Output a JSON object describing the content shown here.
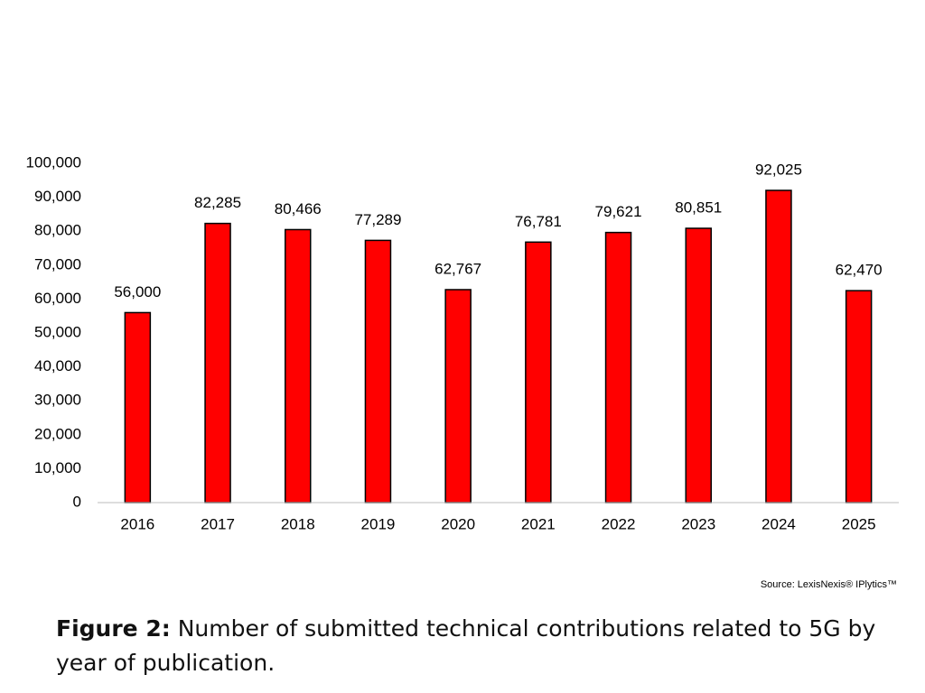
{
  "chart_data": {
    "type": "bar",
    "categories": [
      "2016",
      "2017",
      "2018",
      "2019",
      "2020",
      "2021",
      "2022",
      "2023",
      "2024",
      "2025"
    ],
    "values": [
      56000,
      82285,
      80466,
      77289,
      62767,
      76781,
      79621,
      80851,
      92025,
      62470
    ],
    "value_labels": [
      "56,000",
      "82,285",
      "80,466",
      "77,289",
      "62,767",
      "76,781",
      "79,621",
      "80,851",
      "92,025",
      "62,470"
    ],
    "color": "#ff0000",
    "ylim": [
      0,
      100000
    ],
    "yticks": [
      0,
      {
        "value": 10000,
        "label": "10,000"
      },
      {
        "value": 20000,
        "label": "20,000"
      },
      {
        "value": 30000,
        "label": "30,000"
      },
      {
        "value": 40000,
        "label": "40,000"
      },
      {
        "value": 50000,
        "label": "50,000"
      },
      {
        "value": 60000,
        "label": "60,000"
      },
      {
        "value": 70000,
        "label": "70,000"
      },
      {
        "value": 80000,
        "label": "80,000"
      },
      {
        "value": 90000,
        "label": "90,000"
      },
      {
        "value": 100000,
        "label": "100,000"
      }
    ],
    "grid": false,
    "source": "Source: LexisNexis® IPlytics™"
  },
  "caption": {
    "label": "Figure 2:",
    "text": "Number of submitted technical contributions related to 5G by year of publication."
  }
}
